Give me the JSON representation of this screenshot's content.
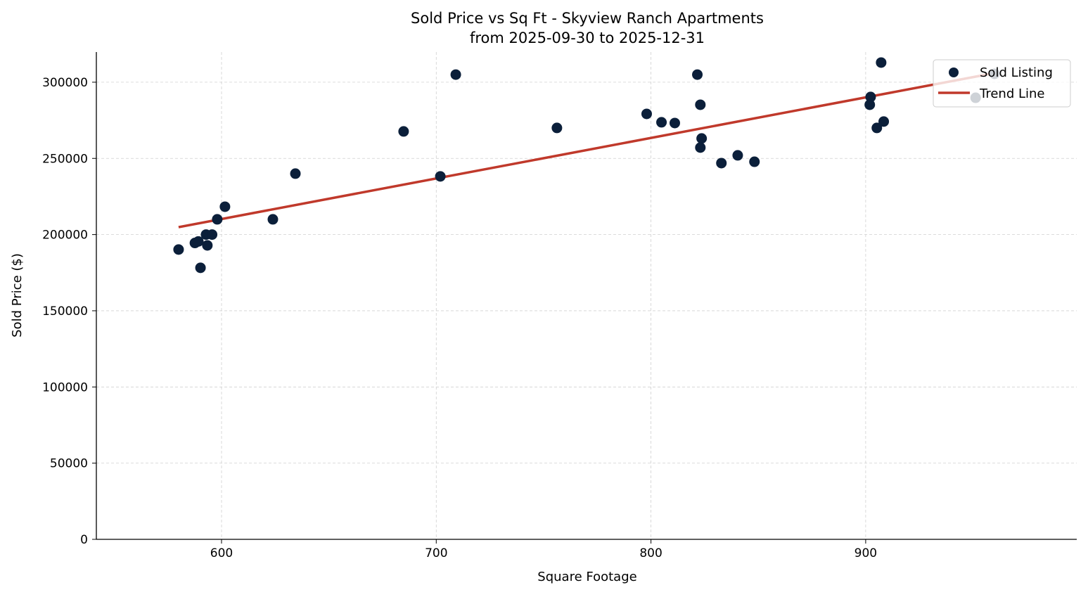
{
  "chart_data": {
    "type": "scatter",
    "title": "Sold Price vs Sq Ft - Skyview Ranch Apartments",
    "subtitle": "from 2025-09-30 to 2025-12-31",
    "xlabel": "Square Footage",
    "ylabel": "Sold Price ($)",
    "xlim": [
      541.7,
      998.3
    ],
    "ylim": [
      0,
      319800
    ],
    "xticks": [
      600,
      700,
      800,
      900
    ],
    "yticks": [
      0,
      50000,
      100000,
      150000,
      200000,
      250000,
      300000
    ],
    "grid": true,
    "legend": {
      "placement": "top-right",
      "entries": [
        "Sold Listing",
        "Trend Line"
      ]
    },
    "colors": {
      "points": "#0b1f3a",
      "trend": "#c0392b"
    },
    "series": [
      {
        "name": "Sold Listing",
        "kind": "scatter",
        "points": [
          [
            580,
            190200
          ],
          [
            587.6,
            194500
          ],
          [
            589.2,
            195500
          ],
          [
            590.2,
            178200
          ],
          [
            592.8,
            200000
          ],
          [
            593.4,
            192900
          ],
          [
            595.6,
            200000
          ],
          [
            598,
            210000
          ],
          [
            601.6,
            218300
          ],
          [
            623.9,
            210000
          ],
          [
            634.4,
            240000
          ],
          [
            684.8,
            267700
          ],
          [
            701.9,
            238200
          ],
          [
            709.1,
            305000
          ],
          [
            756.2,
            270000
          ],
          [
            798,
            279200
          ],
          [
            804.9,
            273700
          ],
          [
            811.1,
            273200
          ],
          [
            821.6,
            305000
          ],
          [
            823,
            285200
          ],
          [
            823.6,
            263100
          ],
          [
            823,
            257100
          ],
          [
            832.8,
            246900
          ],
          [
            840.4,
            252000
          ],
          [
            848.2,
            247800
          ],
          [
            902.3,
            290300
          ],
          [
            901.9,
            285200
          ],
          [
            907.2,
            312900
          ],
          [
            905.2,
            270000
          ],
          [
            908.4,
            274200
          ],
          [
            951.2,
            289800
          ],
          [
            960,
            305500
          ]
        ]
      },
      {
        "name": "Trend Line",
        "kind": "line",
        "points": [
          [
            580,
            204900
          ],
          [
            960,
            306000
          ]
        ]
      }
    ]
  }
}
